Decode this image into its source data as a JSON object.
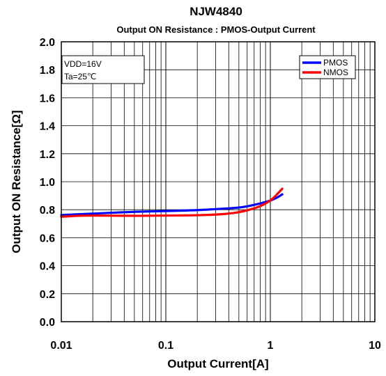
{
  "chart_data": {
    "type": "line",
    "title": "NJW4840",
    "subtitle": "Output ON Resistance : PMOS-Output Current",
    "xlabel": "Output Current[A]",
    "ylabel": "Output ON Resistance[Ω]",
    "x_scale": "log",
    "xlim": [
      0.01,
      10
    ],
    "ylim": [
      0.0,
      2.0
    ],
    "x_ticks": [
      "0.01",
      "0.1",
      "1",
      "10"
    ],
    "y_ticks": [
      "0.0",
      "0.2",
      "0.4",
      "0.6",
      "0.8",
      "1.0",
      "1.2",
      "1.4",
      "1.6",
      "1.8",
      "2.0"
    ],
    "grid": true,
    "legend_position": "top-right",
    "annotations": [
      "VDD=16V",
      "Ta=25℃"
    ],
    "series": [
      {
        "name": "PMOS",
        "color": "#0000ff",
        "x": [
          0.01,
          0.015,
          0.02,
          0.03,
          0.05,
          0.1,
          0.2,
          0.3,
          0.5,
          0.6,
          0.7,
          0.8,
          0.9,
          1.0,
          1.1,
          1.2,
          1.3
        ],
        "y": [
          0.762,
          0.768,
          0.772,
          0.778,
          0.785,
          0.79,
          0.797,
          0.804,
          0.815,
          0.824,
          0.835,
          0.845,
          0.855,
          0.865,
          0.878,
          0.893,
          0.91
        ]
      },
      {
        "name": "NMOS",
        "color": "#ff0000",
        "x": [
          0.01,
          0.015,
          0.02,
          0.03,
          0.05,
          0.1,
          0.2,
          0.3,
          0.4,
          0.5,
          0.6,
          0.7,
          0.8,
          0.9,
          1.0,
          1.1,
          1.2,
          1.3
        ],
        "y": [
          0.75,
          0.757,
          0.758,
          0.757,
          0.756,
          0.758,
          0.76,
          0.765,
          0.772,
          0.782,
          0.795,
          0.81,
          0.825,
          0.845,
          0.865,
          0.892,
          0.922,
          0.95
        ]
      }
    ]
  }
}
